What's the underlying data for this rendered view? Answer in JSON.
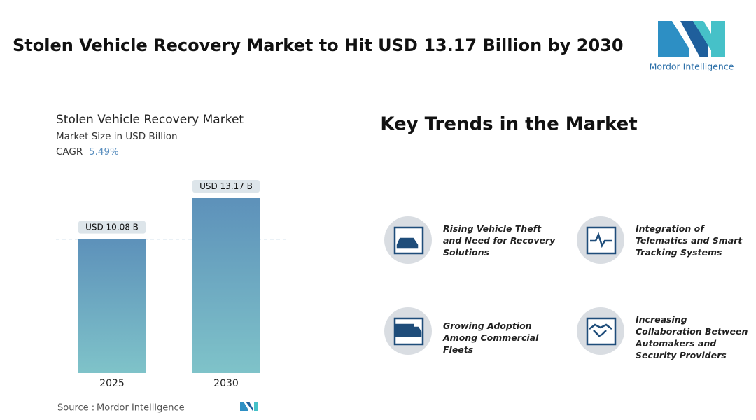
{
  "header": {
    "title": "Stolen Vehicle Recovery Market to Hit USD 13.17 Billion by 2030",
    "logo": "Mordor Intelligence"
  },
  "chart_data": {
    "type": "bar",
    "title": "Stolen Vehicle Recovery Market",
    "subtitle": "Market Size in USD Billion",
    "cagr_label": "CAGR",
    "cagr_value": "5.49%",
    "categories": [
      "2025",
      "2030"
    ],
    "values": [
      10.08,
      13.17
    ],
    "value_labels": [
      "USD 10.08 B",
      "USD 13.17 B"
    ],
    "color_top": "#5d91ba",
    "color_bottom": "#7fc3c9",
    "source_label": "Source :",
    "source": "Mordor Intelligence"
  },
  "trends": {
    "title": "Key Trends in the Market",
    "items": [
      "Rising Vehicle Theft and Need for Recovery Solutions",
      "Integration of Telematics and Smart Tracking Systems",
      "Growing Adoption Among Commercial Fleets",
      "Increasing Collaboration Between Automakers and Security Providers"
    ]
  }
}
